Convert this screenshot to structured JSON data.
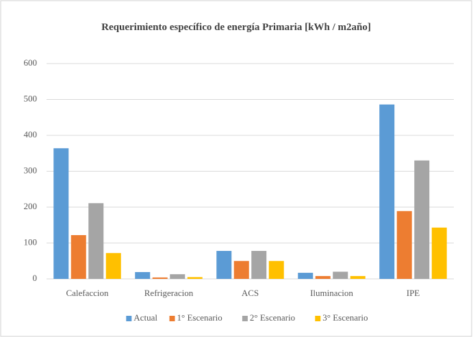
{
  "chart_data": {
    "type": "bar",
    "title": "Requerimiento  específico de energía Primaria   [kWh / m2año]",
    "categories": [
      "Calefaccion",
      "Refrigeracion",
      "ACS",
      "Iluminacion",
      "IPE"
    ],
    "series": [
      {
        "name": "Actual",
        "color": "#5b9bd5",
        "values": [
          364,
          19,
          78,
          17,
          486
        ]
      },
      {
        "name": "1° Escenario",
        "color": "#ed7d31",
        "values": [
          122,
          4,
          50,
          8,
          189
        ]
      },
      {
        "name": "2° Escenario",
        "color": "#a5a5a5",
        "values": [
          211,
          13,
          78,
          20,
          330
        ]
      },
      {
        "name": "3° Escenario",
        "color": "#ffc000",
        "values": [
          72,
          5,
          50,
          8,
          143
        ]
      }
    ],
    "ylim": [
      0,
      600
    ],
    "yticks": [
      0,
      100,
      200,
      300,
      400,
      500,
      600
    ],
    "grid": true,
    "legend": "bottom"
  }
}
